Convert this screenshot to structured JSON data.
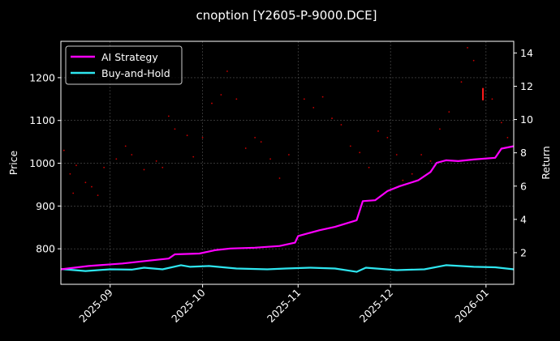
{
  "chart_data": {
    "type": "line",
    "title": "cnoption [Y2605-P-9000.DCE]",
    "xlabel": "",
    "ylabel_left": "Price",
    "ylabel_right": "Return",
    "x_range": [
      "2025-08-16",
      "2026-01-10"
    ],
    "y_left_range": [
      717,
      1285
    ],
    "y_right_range": [
      0.1,
      14.7
    ],
    "x_tick_labels": [
      {
        "date": "2025-09-01",
        "label": "2025-09"
      },
      {
        "date": "2025-10-01",
        "label": "2025-10"
      },
      {
        "date": "2025-11-01",
        "label": "2025-11"
      },
      {
        "date": "2025-12-01",
        "label": "2025-12"
      },
      {
        "date": "2026-01-01",
        "label": "2026-01"
      }
    ],
    "y_left_ticks": [
      800,
      900,
      1000,
      1100,
      1200
    ],
    "y_right_ticks": [
      2,
      4,
      6,
      8,
      10,
      12,
      14
    ],
    "grid": true,
    "legend_position": "top-left",
    "colors": {
      "background": "#000000",
      "ai_strategy": "#ff00ff",
      "buy_and_hold": "#2ee6f0",
      "price_dots": "#cc0000",
      "price_marker": "#ff1a1a",
      "grid": "#555555",
      "axes": "#ffffff"
    },
    "series": [
      {
        "name": "AI Strategy",
        "axis": "right",
        "points": [
          [
            "2025-08-16",
            1.0
          ],
          [
            "2025-08-25",
            1.2
          ],
          [
            "2025-09-05",
            1.35
          ],
          [
            "2025-09-15",
            1.55
          ],
          [
            "2025-09-20",
            1.65
          ],
          [
            "2025-09-22",
            1.9
          ],
          [
            "2025-09-30",
            1.95
          ],
          [
            "2025-10-05",
            2.15
          ],
          [
            "2025-10-10",
            2.25
          ],
          [
            "2025-10-18",
            2.3
          ],
          [
            "2025-10-26",
            2.4
          ],
          [
            "2025-10-31",
            2.6
          ],
          [
            "2025-11-01",
            3.0
          ],
          [
            "2025-11-08",
            3.35
          ],
          [
            "2025-11-13",
            3.55
          ],
          [
            "2025-11-20",
            3.95
          ],
          [
            "2025-11-22",
            5.1
          ],
          [
            "2025-11-26",
            5.15
          ],
          [
            "2025-11-30",
            5.7
          ],
          [
            "2025-12-04",
            6.0
          ],
          [
            "2025-12-10",
            6.35
          ],
          [
            "2025-12-14",
            6.85
          ],
          [
            "2025-12-16",
            7.4
          ],
          [
            "2025-12-19",
            7.55
          ],
          [
            "2025-12-23",
            7.5
          ],
          [
            "2025-12-28",
            7.6
          ],
          [
            "2026-01-04",
            7.7
          ],
          [
            "2026-01-06",
            8.25
          ],
          [
            "2026-01-10",
            8.4
          ]
        ]
      },
      {
        "name": "Buy-and-Hold",
        "axis": "right",
        "points": [
          [
            "2025-08-16",
            1.02
          ],
          [
            "2025-08-24",
            0.9
          ],
          [
            "2025-09-01",
            1.0
          ],
          [
            "2025-09-08",
            0.98
          ],
          [
            "2025-09-12",
            1.1
          ],
          [
            "2025-09-18",
            1.0
          ],
          [
            "2025-09-24",
            1.25
          ],
          [
            "2025-09-27",
            1.15
          ],
          [
            "2025-10-03",
            1.2
          ],
          [
            "2025-10-12",
            1.05
          ],
          [
            "2025-10-22",
            1.0
          ],
          [
            "2025-10-28",
            1.05
          ],
          [
            "2025-11-05",
            1.1
          ],
          [
            "2025-11-13",
            1.05
          ],
          [
            "2025-11-20",
            0.85
          ],
          [
            "2025-11-23",
            1.1
          ],
          [
            "2025-12-03",
            0.95
          ],
          [
            "2025-12-12",
            1.0
          ],
          [
            "2025-12-19",
            1.25
          ],
          [
            "2025-12-28",
            1.15
          ],
          [
            "2026-01-04",
            1.12
          ],
          [
            "2026-01-10",
            1.0
          ]
        ]
      }
    ],
    "price_scatter": {
      "axis": "left",
      "points": [
        [
          "2025-08-17",
          1030
        ],
        [
          "2025-08-19",
          975
        ],
        [
          "2025-08-20",
          930
        ],
        [
          "2025-08-21",
          995
        ],
        [
          "2025-08-24",
          955
        ],
        [
          "2025-08-26",
          945
        ],
        [
          "2025-08-28",
          925
        ],
        [
          "2025-08-30",
          990
        ],
        [
          "2025-09-03",
          1010
        ],
        [
          "2025-09-06",
          1040
        ],
        [
          "2025-09-08",
          1020
        ],
        [
          "2025-09-12",
          985
        ],
        [
          "2025-09-16",
          1005
        ],
        [
          "2025-09-18",
          990
        ],
        [
          "2025-09-20",
          1110
        ],
        [
          "2025-09-22",
          1080
        ],
        [
          "2025-09-26",
          1065
        ],
        [
          "2025-09-28",
          1015
        ],
        [
          "2025-10-01",
          1060
        ],
        [
          "2025-10-04",
          1140
        ],
        [
          "2025-10-07",
          1160
        ],
        [
          "2025-10-09",
          1215
        ],
        [
          "2025-10-12",
          1150
        ],
        [
          "2025-10-15",
          1035
        ],
        [
          "2025-10-18",
          1060
        ],
        [
          "2025-10-20",
          1050
        ],
        [
          "2025-10-23",
          1010
        ],
        [
          "2025-10-26",
          965
        ],
        [
          "2025-10-29",
          1020
        ],
        [
          "2025-11-03",
          1150
        ],
        [
          "2025-11-06",
          1130
        ],
        [
          "2025-11-09",
          1155
        ],
        [
          "2025-11-12",
          1105
        ],
        [
          "2025-11-15",
          1090
        ],
        [
          "2025-11-18",
          1040
        ],
        [
          "2025-11-21",
          1025
        ],
        [
          "2025-11-24",
          990
        ],
        [
          "2025-11-27",
          1075
        ],
        [
          "2025-11-30",
          1060
        ],
        [
          "2025-12-03",
          1020
        ],
        [
          "2025-12-05",
          960
        ],
        [
          "2025-12-08",
          975
        ],
        [
          "2025-12-11",
          1020
        ],
        [
          "2025-12-14",
          1005
        ],
        [
          "2025-12-17",
          1080
        ],
        [
          "2025-12-20",
          1120
        ],
        [
          "2025-12-24",
          1190
        ],
        [
          "2025-12-26",
          1270
        ],
        [
          "2025-12-28",
          1240
        ],
        [
          "2025-12-31",
          1175
        ],
        [
          "2026-01-03",
          1150
        ],
        [
          "2026-01-06",
          1095
        ],
        [
          "2026-01-08",
          1060
        ]
      ],
      "marker": {
        "date": "2025-12-31",
        "from": 1175,
        "to": 1147
      }
    }
  }
}
